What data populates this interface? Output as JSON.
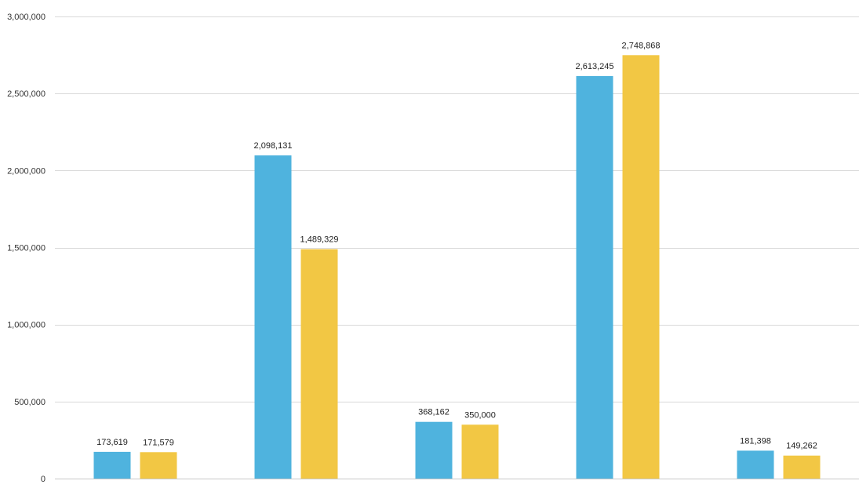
{
  "chart_data": {
    "type": "bar",
    "title": "",
    "xlabel": "",
    "ylabel": "",
    "ylim": [
      0,
      3000000
    ],
    "yticks": [
      0,
      500000,
      1000000,
      1500000,
      2000000,
      2500000,
      3000000
    ],
    "ytick_labels": [
      "0",
      "500,000",
      "1,000,000",
      "1,500,000",
      "2,000,000",
      "2,500,000",
      "3,000,000"
    ],
    "grid": true,
    "categories": [
      "",
      "",
      "",
      "",
      ""
    ],
    "series": [
      {
        "name": "",
        "color": "#4FB3DE",
        "values": [
          173619,
          2098131,
          368162,
          2613245,
          181398
        ],
        "labels": [
          "173,619",
          "2,098,131",
          "368,162",
          "2,613,245",
          "181,398"
        ]
      },
      {
        "name": "",
        "color": "#F2C744",
        "values": [
          171579,
          1489329,
          350000,
          2748868,
          149262
        ],
        "labels": [
          "171,579",
          "1,489,329",
          "350,000",
          "2,748,868",
          "149,262"
        ]
      }
    ]
  }
}
